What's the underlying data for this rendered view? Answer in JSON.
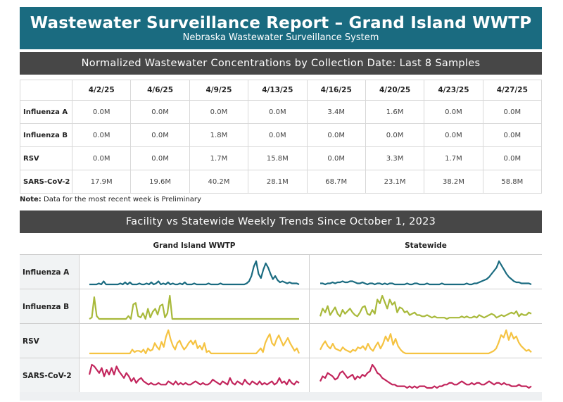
{
  "header": {
    "title": "Wastewater Surveillance Report – Grand Island WWTP",
    "subtitle": "Nebraska Wastewater Surveillance System"
  },
  "table_section": {
    "heading": "Normalized Wastewater Concentrations by Collection Date: Last 8 Samples",
    "dates": [
      "4/2/25",
      "4/6/25",
      "4/9/25",
      "4/13/25",
      "4/16/25",
      "4/20/25",
      "4/23/25",
      "4/27/25"
    ],
    "rows": [
      {
        "label": "Influenza A",
        "values": [
          "0.0M",
          "0.0M",
          "0.0M",
          "0.0M",
          "3.4M",
          "1.6M",
          "0.0M",
          "0.0M"
        ]
      },
      {
        "label": "Influenza B",
        "values": [
          "0.0M",
          "0.0M",
          "1.8M",
          "0.0M",
          "0.0M",
          "0.0M",
          "0.0M",
          "0.0M"
        ]
      },
      {
        "label": "RSV",
        "values": [
          "0.0M",
          "0.0M",
          "1.7M",
          "15.8M",
          "0.0M",
          "3.3M",
          "1.7M",
          "0.0M"
        ]
      },
      {
        "label": "SARS-CoV-2",
        "values": [
          "17.9M",
          "19.6M",
          "40.2M",
          "28.1M",
          "68.7M",
          "23.1M",
          "38.2M",
          "58.8M"
        ]
      }
    ],
    "note_label": "Note:",
    "note_text": " Data for the most recent week is Preliminary"
  },
  "trends_section": {
    "heading": "Facility vs Statewide Weekly Trends Since October 1, 2023",
    "col_facility": "Grand Island WWTP",
    "col_statewide": "Statewide",
    "rows": [
      {
        "label": "Influenza A",
        "color": "#1a6b80",
        "facility": [
          0,
          0,
          0,
          0,
          1,
          0,
          3,
          0,
          0,
          0,
          0,
          0,
          0,
          1,
          0,
          2,
          0,
          2,
          0,
          0,
          0,
          1,
          0,
          0,
          1,
          0,
          2,
          0,
          1,
          3,
          0,
          1,
          0,
          2,
          0,
          1,
          0,
          0,
          1,
          0,
          2,
          0,
          0,
          0,
          1,
          0,
          0,
          0,
          0,
          0,
          1,
          0,
          0,
          0,
          0,
          1,
          0,
          0,
          0,
          0,
          0,
          0,
          0,
          0,
          0,
          0,
          1,
          3,
          8,
          17,
          22,
          10,
          6,
          14,
          20,
          16,
          10,
          5,
          8,
          4,
          2,
          3,
          2,
          1,
          2,
          1,
          1,
          1,
          0
        ],
        "statewide": [
          1,
          1,
          0,
          1,
          1,
          2,
          1,
          2,
          2,
          3,
          2,
          2,
          3,
          3,
          2,
          1,
          1,
          2,
          1,
          0,
          1,
          1,
          0,
          1,
          1,
          0,
          1,
          0,
          1,
          1,
          0,
          0,
          0,
          0,
          0,
          1,
          0,
          0,
          1,
          1,
          0,
          0,
          0,
          1,
          0,
          0,
          0,
          0,
          0,
          1,
          0,
          0,
          0,
          0,
          0,
          0,
          0,
          0,
          0,
          1,
          0,
          0,
          1,
          1,
          2,
          3,
          4,
          5,
          7,
          10,
          13,
          16,
          22,
          18,
          14,
          10,
          7,
          5,
          3,
          2,
          2,
          1,
          1,
          1,
          1,
          0
        ]
      },
      {
        "label": "Influenza B",
        "color": "#a8b93a",
        "facility": [
          0,
          1,
          15,
          2,
          0,
          0,
          0,
          0,
          0,
          0,
          0,
          0,
          0,
          0,
          0,
          0,
          2,
          0,
          10,
          11,
          2,
          1,
          4,
          0,
          7,
          1,
          5,
          7,
          3,
          9,
          10,
          1,
          4,
          16,
          0,
          0,
          0,
          0,
          0,
          0,
          0,
          0,
          0,
          0,
          0,
          0,
          0,
          0,
          0,
          0,
          0,
          0,
          0,
          0,
          0,
          0,
          0,
          0,
          0,
          0,
          0,
          0,
          0,
          0,
          0,
          0,
          0,
          0,
          0,
          0,
          0,
          0,
          0,
          0,
          0,
          0,
          0,
          0,
          0,
          0,
          0,
          0,
          0,
          0,
          0,
          0,
          0
        ],
        "statewide": [
          2,
          8,
          5,
          10,
          3,
          6,
          9,
          4,
          2,
          7,
          4,
          6,
          8,
          5,
          3,
          2,
          5,
          9,
          10,
          4,
          3,
          7,
          4,
          15,
          12,
          18,
          13,
          8,
          15,
          11,
          13,
          5,
          9,
          8,
          5,
          6,
          3,
          4,
          5,
          3,
          3,
          2,
          2,
          3,
          2,
          1,
          2,
          1,
          1,
          1,
          1,
          0,
          1,
          1,
          1,
          1,
          1,
          2,
          1,
          2,
          1,
          1,
          2,
          1,
          3,
          2,
          1,
          2,
          3,
          4,
          3,
          1,
          2,
          3,
          2,
          3,
          4,
          5,
          4,
          6,
          2,
          4,
          3,
          3,
          5,
          4
        ]
      },
      {
        "label": "RSV",
        "color": "#f5c342",
        "facility": [
          0,
          0,
          0,
          0,
          0,
          0,
          0,
          0,
          0,
          0,
          0,
          0,
          0,
          0,
          0,
          0,
          0,
          0,
          0,
          3,
          1,
          2,
          2,
          1,
          3,
          0,
          4,
          2,
          3,
          8,
          5,
          3,
          9,
          5,
          13,
          18,
          11,
          6,
          3,
          8,
          10,
          6,
          3,
          5,
          8,
          10,
          7,
          10,
          4,
          6,
          3,
          8,
          1,
          2,
          0,
          0,
          0,
          0,
          0,
          0,
          0,
          0,
          0,
          0,
          0,
          0,
          0,
          0,
          0,
          0,
          0,
          0,
          0,
          0,
          0,
          2,
          4,
          1,
          8,
          12,
          15,
          8,
          6,
          11,
          14,
          10,
          6,
          9,
          12,
          8,
          5,
          2,
          4,
          0
        ],
        "statewide": [
          3,
          7,
          10,
          6,
          4,
          8,
          4,
          3,
          2,
          5,
          3,
          2,
          1,
          3,
          2,
          5,
          4,
          6,
          3,
          8,
          4,
          2,
          6,
          9,
          4,
          8,
          14,
          10,
          16,
          7,
          12,
          6,
          3,
          1,
          0,
          0,
          0,
          0,
          0,
          0,
          0,
          0,
          0,
          0,
          0,
          0,
          0,
          0,
          0,
          0,
          0,
          0,
          0,
          0,
          0,
          0,
          0,
          0,
          0,
          0,
          0,
          0,
          0,
          0,
          0,
          0,
          0,
          0,
          1,
          2,
          4,
          9,
          15,
          13,
          19,
          11,
          17,
          12,
          14,
          9,
          6,
          4,
          2,
          3,
          1
        ]
      },
      {
        "label": "SARS-CoV-2",
        "color": "#c2255c",
        "facility": [
          8,
          14,
          13,
          11,
          9,
          12,
          7,
          11,
          8,
          12,
          8,
          13,
          10,
          8,
          6,
          9,
          7,
          4,
          6,
          3,
          5,
          6,
          4,
          3,
          2,
          3,
          2,
          2,
          3,
          2,
          2,
          2,
          4,
          3,
          2,
          4,
          2,
          3,
          2,
          3,
          2,
          2,
          3,
          4,
          3,
          2,
          3,
          2,
          2,
          3,
          5,
          4,
          3,
          2,
          4,
          3,
          2,
          6,
          3,
          2,
          4,
          3,
          2,
          5,
          3,
          2,
          4,
          3,
          2,
          4,
          2,
          3,
          2,
          3,
          4,
          2,
          3,
          6,
          3,
          4,
          2,
          5,
          3,
          2,
          4,
          3
        ],
        "statewide": [
          4,
          7,
          6,
          9,
          8,
          7,
          5,
          6,
          9,
          10,
          8,
          6,
          7,
          8,
          5,
          7,
          6,
          8,
          7,
          9,
          10,
          14,
          12,
          9,
          8,
          6,
          5,
          4,
          3,
          2,
          2,
          1,
          1,
          1,
          1,
          0,
          1,
          0,
          1,
          0,
          1,
          1,
          1,
          0,
          0,
          0,
          1,
          0,
          1,
          1,
          2,
          2,
          3,
          3,
          2,
          2,
          3,
          4,
          3,
          2,
          2,
          3,
          2,
          3,
          3,
          2,
          2,
          3,
          4,
          3,
          2,
          3,
          3,
          2,
          3,
          2,
          2,
          1,
          1,
          1,
          2,
          1,
          1,
          1,
          0,
          1
        ]
      }
    ]
  }
}
